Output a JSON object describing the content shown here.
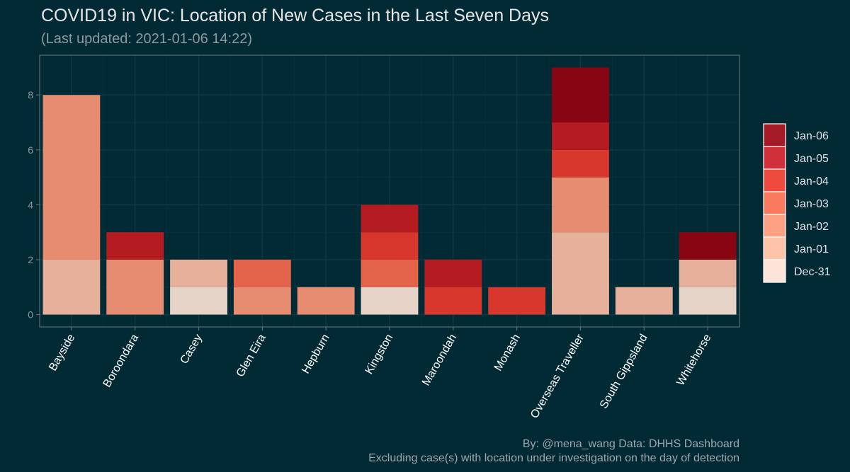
{
  "title": "COVID19 in VIC: Location of New Cases in the Last Seven Days",
  "subtitle": "(Last updated: 2021-01-06 14:22)",
  "caption": {
    "line1": "By: @mena_wang  Data: DHHS Dashboard",
    "line2": "Excluding case(s) with location under investigation on the day of detection"
  },
  "chart_data": {
    "type": "bar",
    "stacked": true,
    "categories": [
      "Bayside",
      "Boroondara",
      "Casey",
      "Glen Eira",
      "Hepburn",
      "Kingston",
      "Maroondah",
      "Monash",
      "Overseas Traveller",
      "South Gippsland",
      "Whitehorse"
    ],
    "series": [
      {
        "name": "Dec-31",
        "color": "#e6d4c9",
        "values": [
          0,
          0,
          1,
          0,
          0,
          1,
          0,
          0,
          0,
          0,
          1
        ]
      },
      {
        "name": "Jan-01",
        "color": "#e6b09a",
        "values": [
          2,
          0,
          1,
          0,
          0,
          0,
          0,
          0,
          3,
          1,
          1
        ]
      },
      {
        "name": "Jan-02",
        "color": "#e58c71",
        "values": [
          6,
          2,
          0,
          1,
          1,
          0,
          0,
          0,
          2,
          0,
          0
        ]
      },
      {
        "name": "Jan-03",
        "color": "#e3644b",
        "values": [
          0,
          0,
          0,
          1,
          0,
          1,
          0,
          0,
          0,
          0,
          0
        ]
      },
      {
        "name": "Jan-04",
        "color": "#d8372d",
        "values": [
          0,
          0,
          0,
          0,
          0,
          1,
          1,
          1,
          1,
          0,
          0
        ]
      },
      {
        "name": "Jan-05",
        "color": "#b51c21",
        "values": [
          0,
          1,
          0,
          0,
          0,
          1,
          1,
          0,
          1,
          0,
          0
        ]
      },
      {
        "name": "Jan-06",
        "color": "#880614",
        "values": [
          0,
          0,
          0,
          0,
          0,
          0,
          0,
          0,
          2,
          0,
          1
        ]
      }
    ],
    "legend": {
      "position": "right",
      "entries": [
        {
          "label": "Jan-06",
          "color": "#a51b25"
        },
        {
          "label": "Jan-05",
          "color": "#d0303a"
        },
        {
          "label": "Jan-04",
          "color": "#ee4a3e"
        },
        {
          "label": "Jan-03",
          "color": "#fa7a5f"
        },
        {
          "label": "Jan-02",
          "color": "#fca184"
        },
        {
          "label": "Jan-01",
          "color": "#fdc4aa"
        },
        {
          "label": "Dec-31",
          "color": "#fde4d9"
        }
      ]
    },
    "yticks": [
      0,
      2,
      4,
      6,
      8
    ],
    "ylim": [
      -0.45,
      9.45
    ],
    "xlabel": "",
    "ylabel": "",
    "grid": true,
    "colors": {
      "background": "#022a35",
      "grid_major": "#0e3945",
      "grid_minor": "#08313c",
      "panel_border": "#5a6e74",
      "axis_text": "#8c9aa0",
      "bar_outline": "#ffffff"
    }
  }
}
